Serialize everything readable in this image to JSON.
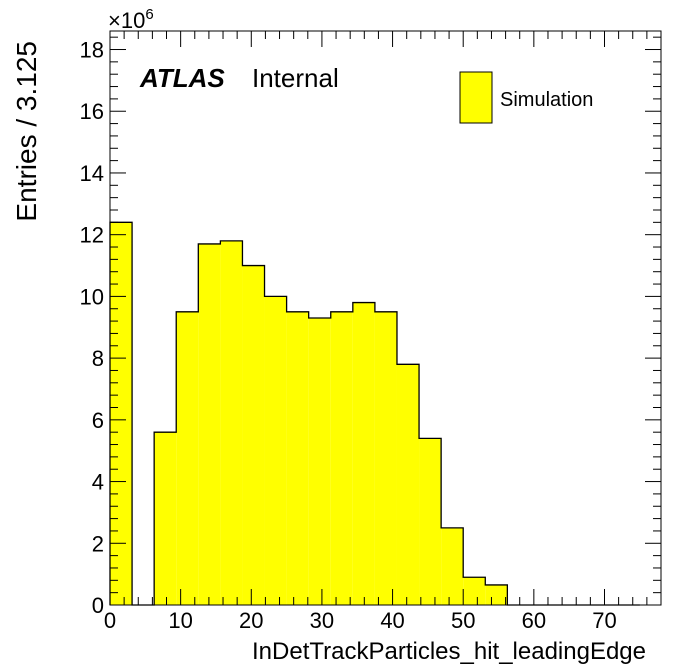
{
  "chart_data": {
    "type": "bar",
    "histogram": true,
    "xlabel": "InDetTrackParticles_hit_leadingEdge",
    "ylabel": "Entries / 3.125",
    "y_multiplier_label": "×10",
    "y_multiplier_exponent": "6",
    "xlim": [
      0,
      78
    ],
    "ylim": [
      0,
      18.6
    ],
    "y_unit_scale": 1000000,
    "x_ticks": [
      0,
      10,
      20,
      30,
      40,
      50,
      60,
      70
    ],
    "x_tick_labels": [
      "0",
      "10",
      "20",
      "30",
      "40",
      "50",
      "60",
      "70"
    ],
    "y_ticks": [
      0,
      2,
      4,
      6,
      8,
      10,
      12,
      14,
      16,
      18
    ],
    "y_tick_labels": [
      "0",
      "2",
      "4",
      "6",
      "8",
      "10",
      "12",
      "14",
      "16",
      "18"
    ],
    "bin_width": 3.125,
    "bin_edges": [
      0,
      3.125,
      6.25,
      9.375,
      12.5,
      15.625,
      18.75,
      21.875,
      25,
      28.125,
      31.25,
      34.375,
      37.5,
      40.625,
      43.75,
      46.875,
      50,
      53.125,
      56.25,
      59.375,
      62.5,
      65.625,
      68.75,
      71.875,
      75
    ],
    "series": [
      {
        "name": "Simulation",
        "color": "#ffff00",
        "values": [
          12.4,
          0,
          5.6,
          9.5,
          11.7,
          11.8,
          11.0,
          10.0,
          9.5,
          9.3,
          9.5,
          9.8,
          9.5,
          7.8,
          5.4,
          2.5,
          0.9,
          0.65,
          0,
          0,
          0,
          0,
          0,
          0
        ]
      }
    ],
    "legend_position": "top-right",
    "grid": false
  },
  "label": {
    "experiment": "ATLAS",
    "status": "Internal"
  },
  "legend": {
    "entry": "Simulation"
  }
}
